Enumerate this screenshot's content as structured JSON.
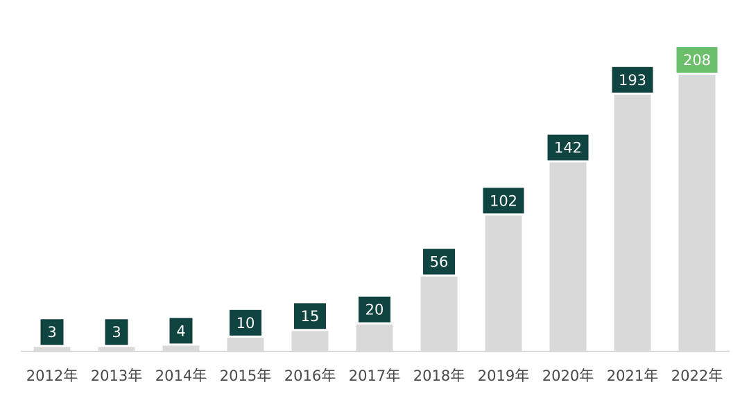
{
  "chart_data": {
    "type": "bar",
    "title": "",
    "xlabel": "",
    "ylabel": "",
    "categories": [
      "2012年",
      "2013年",
      "2014年",
      "2015年",
      "2016年",
      "2017年",
      "2018年",
      "2019年",
      "2020年",
      "2021年",
      "2022年"
    ],
    "values": [
      3,
      3,
      4,
      10,
      15,
      20,
      56,
      102,
      142,
      193,
      208
    ],
    "ylim": [
      0,
      208
    ],
    "grid": false,
    "legend": "none",
    "colors": {
      "bar": "#d9d9d9",
      "label_box": "#0f4441",
      "highlight_label_box": "#6cbf6a",
      "label_text": "#ffffff",
      "axis_line": "#d0d0d0",
      "tick_text": "#4a4a4a"
    },
    "highlight_index": 10
  }
}
